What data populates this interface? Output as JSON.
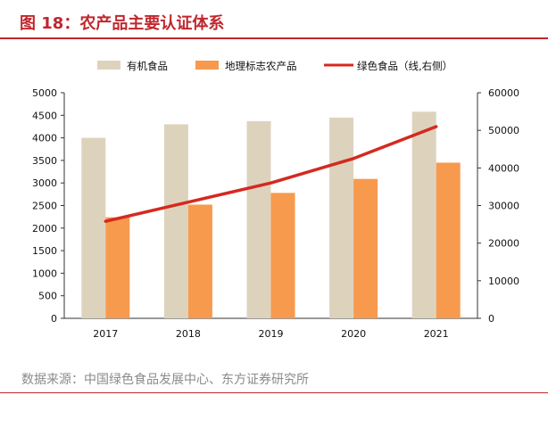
{
  "header": {
    "title": "图 18：农产品主要认证体系"
  },
  "footer": {
    "source": "数据来源：中国绿色食品发展中心、东方证券研究所"
  },
  "colors": {
    "accent": "#c0272d",
    "organic": "#ddd3bd",
    "geo": "#f79a4e",
    "green": "#d42a20"
  },
  "chart_data": {
    "type": "bar",
    "categories": [
      "2017",
      "2018",
      "2019",
      "2020",
      "2021"
    ],
    "series": [
      {
        "name": "有机食品",
        "kind": "bar",
        "axis": "left",
        "values": [
          4000,
          4300,
          4370,
          4450,
          4580
        ]
      },
      {
        "name": "地理标志农产品",
        "kind": "bar",
        "axis": "left",
        "values": [
          2240,
          2520,
          2780,
          3090,
          3450
        ]
      },
      {
        "name": "绿色食品（线,右侧）",
        "kind": "line",
        "axis": "right",
        "values": [
          25800,
          30900,
          36000,
          42500,
          51000
        ]
      }
    ],
    "yleft": {
      "min": 0,
      "max": 5000,
      "step": 500
    },
    "yright": {
      "min": 0,
      "max": 60000,
      "step": 10000
    },
    "legend_position": "top",
    "grid": false
  }
}
